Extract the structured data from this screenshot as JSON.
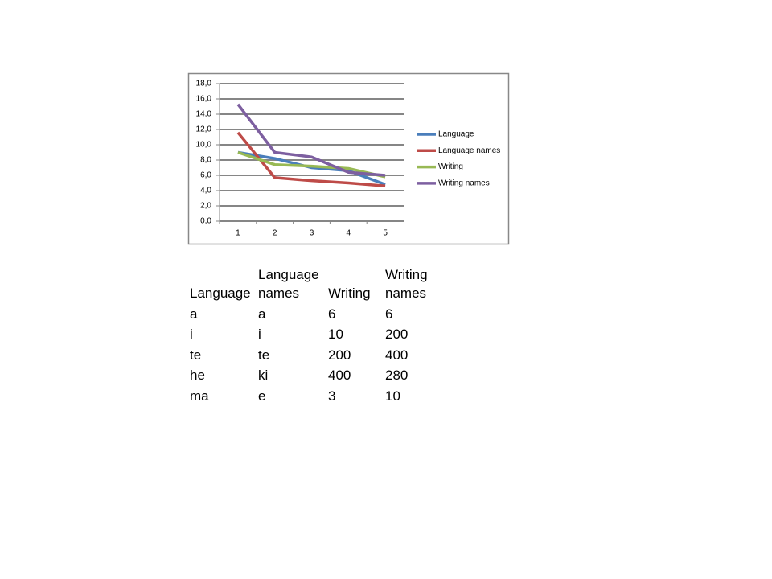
{
  "chart_data": {
    "type": "line",
    "categories": [
      "1",
      "2",
      "3",
      "4",
      "5"
    ],
    "series": [
      {
        "name": "Language",
        "color": "#4a7ebb",
        "values": [
          9.0,
          8.2,
          7.0,
          6.6,
          4.8
        ]
      },
      {
        "name": "Language names",
        "color": "#be4b48",
        "values": [
          11.6,
          5.7,
          5.3,
          5.0,
          4.6
        ]
      },
      {
        "name": "Writing",
        "color": "#98b954",
        "values": [
          9.0,
          7.4,
          7.2,
          6.9,
          5.8
        ]
      },
      {
        "name": "Writing names",
        "color": "#7d5fa0",
        "values": [
          15.3,
          9.0,
          8.4,
          6.4,
          6.0
        ]
      }
    ],
    "ylim": [
      0,
      18
    ],
    "yticks": [
      {
        "value": 0,
        "label": "0,0"
      },
      {
        "value": 2,
        "label": "2,0"
      },
      {
        "value": 4,
        "label": "4,0"
      },
      {
        "value": 6,
        "label": "6,0"
      },
      {
        "value": 8,
        "label": "8,0"
      },
      {
        "value": 10,
        "label": "10,0"
      },
      {
        "value": 12,
        "label": "12,0"
      },
      {
        "value": 14,
        "label": "14,0"
      },
      {
        "value": 16,
        "label": "16,0"
      },
      {
        "value": 18,
        "label": "18,0"
      }
    ],
    "grid": true,
    "legend": "right"
  },
  "table": {
    "header": [
      "Language",
      "Language names",
      "Writing",
      "Writing names"
    ],
    "rows": [
      [
        "a",
        "a",
        "6",
        "6"
      ],
      [
        "i",
        "i",
        "10",
        "200"
      ],
      [
        "te",
        "te",
        "200",
        "400"
      ],
      [
        "he",
        "ki",
        "400",
        "280"
      ],
      [
        "ma",
        "e",
        "3",
        "10"
      ]
    ]
  }
}
